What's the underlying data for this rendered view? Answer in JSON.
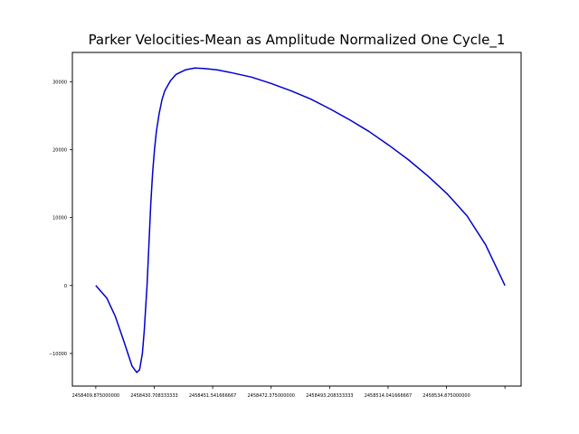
{
  "chart_data": {
    "type": "line",
    "title": "Parker Velocities-Mean as Amplitude Normalized One Cycle_1",
    "xlabel": "",
    "ylabel": "",
    "xlim": [
      2458401.53,
      2458561.46
    ],
    "ylim": [
      -14800,
      34300
    ],
    "grid": false,
    "legend": "none",
    "line_color": "#0000cc",
    "x_ticks": [
      {
        "value": 2458409.875,
        "label": "2458409.875000000"
      },
      {
        "value": 2458430.708333333,
        "label": "2458430.708333333"
      },
      {
        "value": 2458451.541666667,
        "label": "2458451.541666667"
      },
      {
        "value": 2458472.375,
        "label": "2458472.375000000"
      },
      {
        "value": 2458493.208333333,
        "label": "2458493.208333333"
      },
      {
        "value": 2458514.041666667,
        "label": "2458514.041666667"
      },
      {
        "value": 2458534.875,
        "label": "2458534.875000000"
      },
      {
        "value": 2458555.708333333,
        "label": ""
      }
    ],
    "y_ticks": [
      {
        "value": -10000,
        "label": "−10000"
      },
      {
        "value": 0,
        "label": "0"
      },
      {
        "value": 10000,
        "label": "10000"
      },
      {
        "value": 20000,
        "label": "20000"
      },
      {
        "value": 30000,
        "label": "30000"
      }
    ],
    "series": [
      {
        "x": [
          2458409.875,
          2458413.82,
          2458416.82,
          2458419.82,
          2458422.81,
          2458424.48,
          2458425.48,
          2458426.48,
          2458427.14,
          2458428.14,
          2458428.81,
          2458429.47,
          2458430.14,
          2458430.8,
          2458431.47,
          2458432.47,
          2458433.47,
          2458434.47,
          2458436.47,
          2458438.47,
          2458441.79,
          2458445.12,
          2458448.44,
          2458453.09,
          2458458.08,
          2458465.39,
          2458472.37,
          2458479.35,
          2458486.33,
          2458493.31,
          2458500.29,
          2458507.27,
          2458514.25,
          2458521.22,
          2458528.2,
          2458535.18,
          2458542.16,
          2458548.81,
          2458555.71
        ],
        "y": [
          0,
          -1867,
          -4533,
          -8133,
          -11867,
          -12800,
          -12400,
          -10000,
          -6667,
          0,
          6000,
          12000,
          16667,
          20000,
          22667,
          25333,
          27333,
          28667,
          30133,
          31067,
          31733,
          32000,
          31933,
          31733,
          31333,
          30667,
          29733,
          28667,
          27467,
          26000,
          24400,
          22667,
          20667,
          18533,
          16133,
          13467,
          10267,
          6000,
          0
        ]
      }
    ]
  }
}
